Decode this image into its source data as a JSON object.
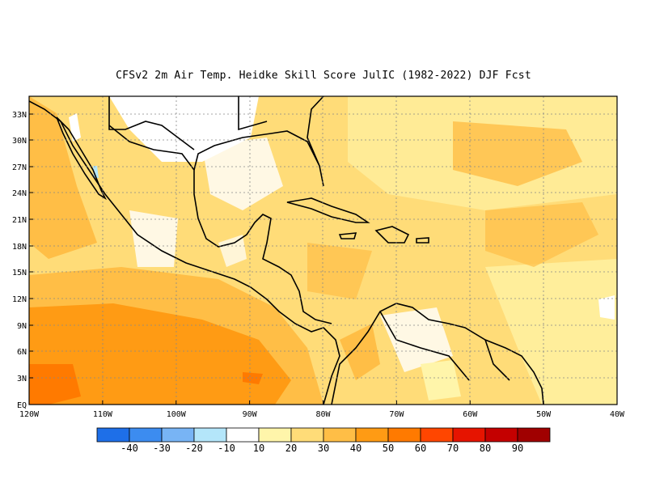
{
  "title": "CFSv2  2m Air Temp. Heidke Skill Score JulIC (1982-2022) DJF Fcst",
  "lat_labels": [
    "33N",
    "30N",
    "27N",
    "24N",
    "21N",
    "18N",
    "15N",
    "12N",
    "9N",
    "6N",
    "3N",
    "EQ"
  ],
  "lon_labels": [
    "120W",
    "110W",
    "100W",
    "90W",
    "80W",
    "70W",
    "60W",
    "50W",
    "40W"
  ],
  "colorbar": {
    "labels": [
      "-40",
      "-30",
      "-20",
      "-10",
      "10",
      "20",
      "30",
      "40",
      "50",
      "60",
      "70",
      "80",
      "90"
    ],
    "colors": [
      "#1e6fe8",
      "#3c8cf0",
      "#78b4f5",
      "#b4e6fa",
      "#ffffff",
      "#fff5aa",
      "#ffdc78",
      "#ffbe46",
      "#ff9b14",
      "#ff7a00",
      "#ff4600",
      "#e61400",
      "#c40000",
      "#a00000"
    ]
  },
  "chart_data": {
    "type": "heatmap",
    "title": "CFSv2  2m Air Temp. Heidke Skill Score JulIC (1982-2022) DJF Fcst",
    "xlim": [
      -120,
      -40
    ],
    "ylim": [
      0,
      35
    ],
    "grid": true
  }
}
